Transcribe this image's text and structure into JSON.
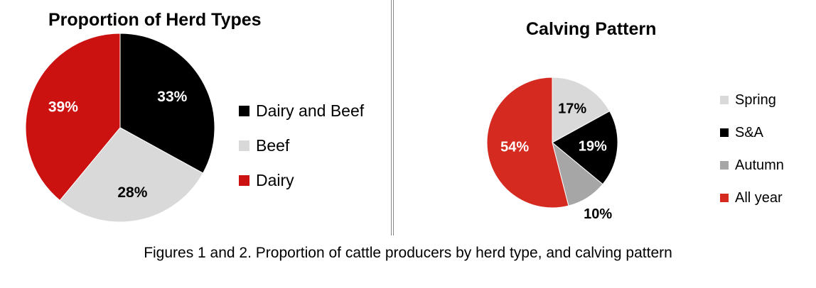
{
  "chart_data": [
    {
      "type": "pie",
      "title": "Proportion of Herd Types",
      "slices": [
        {
          "label": "Dairy and Beef",
          "value": 33,
          "value_label": "33%",
          "color": "#000000"
        },
        {
          "label": "Beef",
          "value": 28,
          "value_label": "28%",
          "color": "#d9d9d9"
        },
        {
          "label": "Dairy",
          "value": 39,
          "value_label": "39%",
          "color": "#cc1111"
        }
      ],
      "legend_placement": "right"
    },
    {
      "type": "pie",
      "title": "Calving Pattern",
      "slices": [
        {
          "label": "Spring",
          "value": 17,
          "value_label": "17%",
          "color": "#d9d9d9"
        },
        {
          "label": "S&A",
          "value": 19,
          "value_label": "19%",
          "color": "#000000"
        },
        {
          "label": "Autumn",
          "value": 10,
          "value_label": "10%",
          "color": "#a6a6a6"
        },
        {
          "label": "All year",
          "value": 54,
          "value_label": "54%",
          "color": "#d42a20"
        }
      ],
      "legend_placement": "right"
    }
  ],
  "caption": "Figures 1 and 2. Proportion of cattle producers by herd type, and calving pattern"
}
